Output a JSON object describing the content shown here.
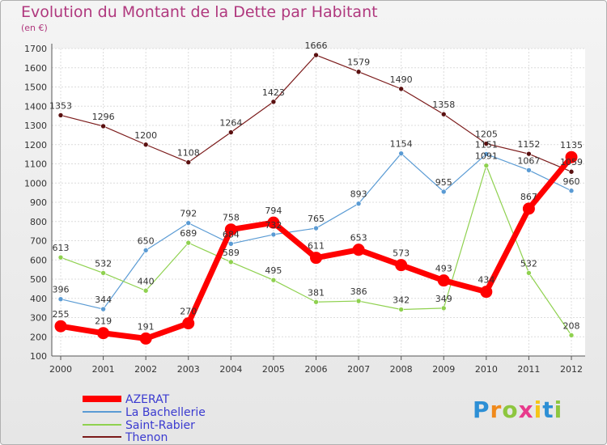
{
  "chart_data": {
    "type": "line",
    "title": "Evolution du Montant de la Dette par Habitant",
    "subtitle": "(en €)",
    "x": [
      "2000",
      "2001",
      "2002",
      "2003",
      "2004",
      "2005",
      "2006",
      "2007",
      "2008",
      "2009",
      "2010",
      "2011",
      "2012"
    ],
    "ylim": [
      100,
      1700
    ],
    "yticks": [
      100,
      200,
      300,
      400,
      500,
      600,
      700,
      800,
      900,
      1000,
      1100,
      1200,
      1300,
      1400,
      1500,
      1600,
      1700
    ],
    "grid": true,
    "legend_position": "bottom-left",
    "series": [
      {
        "name": "AZERAT",
        "color": "#ff0000",
        "values": [
          255,
          219,
          191,
          270,
          758,
          794,
          611,
          653,
          573,
          493,
          434,
          867,
          1135
        ]
      },
      {
        "name": "La Bachellerie",
        "color": "#5a9bd4",
        "values": [
          396,
          344,
          650,
          792,
          684,
          732,
          765,
          893,
          1154,
          955,
          1151,
          1067,
          960
        ]
      },
      {
        "name": "Saint-Rabier",
        "color": "#8fd14f",
        "values": [
          613,
          532,
          440,
          689,
          589,
          495,
          381,
          386,
          342,
          349,
          1091,
          532,
          208
        ]
      },
      {
        "name": "Thenon",
        "color": "#7b1a1a",
        "values": [
          1353,
          1296,
          1200,
          1108,
          1264,
          1423,
          1666,
          1579,
          1490,
          1358,
          1205,
          1152,
          1059
        ]
      }
    ]
  },
  "logo": {
    "letters": [
      "P",
      "r",
      "o",
      "x",
      "i",
      "t",
      "i"
    ],
    "colors": [
      "#2d8fd5",
      "#f08a1c",
      "#8dc63f",
      "#e83a8c",
      "#f5c518",
      "#2d8fd5",
      "#8dc63f"
    ]
  }
}
